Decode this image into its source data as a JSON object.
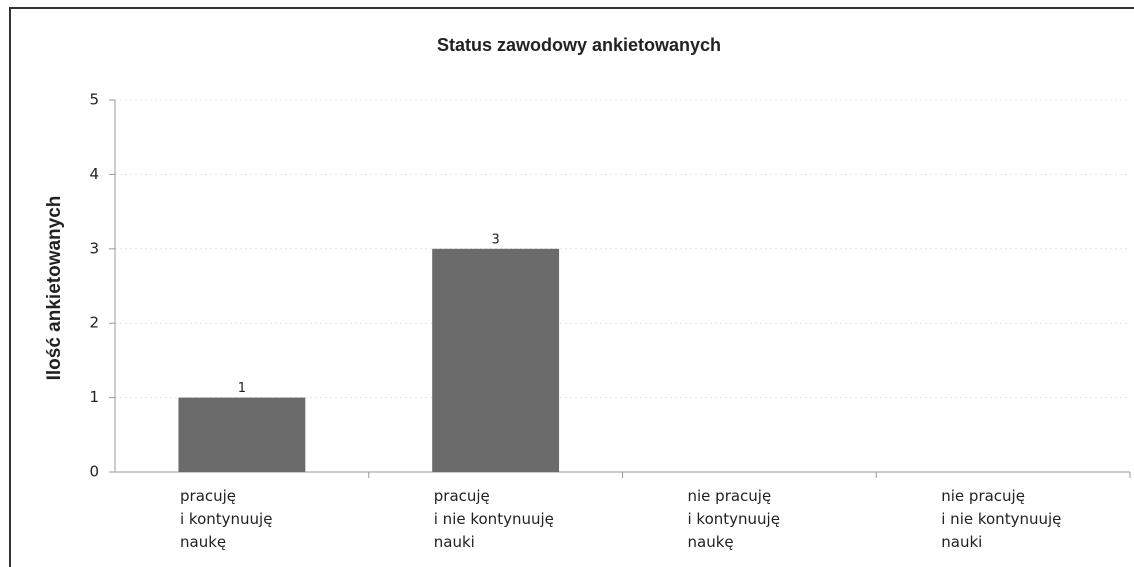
{
  "chart_data": {
    "type": "bar",
    "title": "Status zawodowy ankietowanych",
    "y_label": "Ilość ankietowanych",
    "categories": [
      "pracuję\ni kontynuuję\nnaukę",
      "pracuję\ni nie kontynuuję\nnauki",
      "nie pracuję\ni kontynuuję\nnaukę",
      "nie pracuję\ni nie kontynuuję\nnauki"
    ],
    "values": [
      1,
      3,
      0,
      0
    ],
    "color": "#6b6b6b",
    "ylim": [
      0,
      5
    ],
    "yticks": [
      0,
      1,
      2,
      3,
      4,
      5
    ],
    "grid": true
  }
}
